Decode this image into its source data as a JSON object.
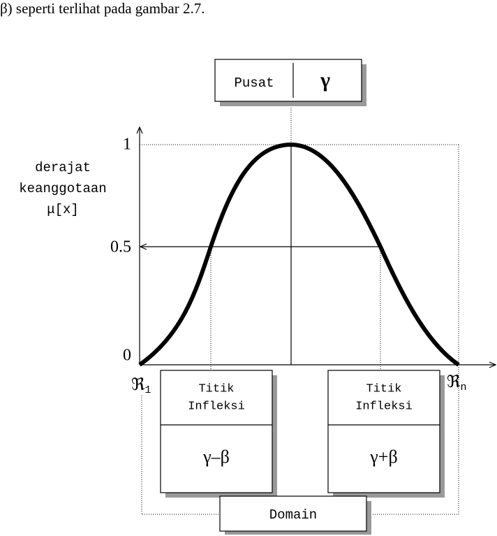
{
  "caption": "β) seperti terlihat pada gambar 2.7.",
  "center_box": {
    "label": "Pusat",
    "symbol": "γ"
  },
  "y_axis": {
    "label": [
      "derajat",
      "keanggotaan",
      "μ[x]"
    ],
    "ticks": [
      "1",
      "0.5",
      "0"
    ]
  },
  "x_axis": {
    "left": {
      "symbol": "ℜ",
      "sub": "1"
    },
    "right": {
      "symbol": "ℜ",
      "sub": "n"
    }
  },
  "left_box": {
    "title": [
      "Titik",
      "Infleksi"
    ],
    "formula": "γ–β"
  },
  "right_box": {
    "title": [
      "Titik",
      "Infleksi"
    ],
    "formula": "γ+β"
  },
  "domain_box": {
    "label": "Domain"
  }
}
